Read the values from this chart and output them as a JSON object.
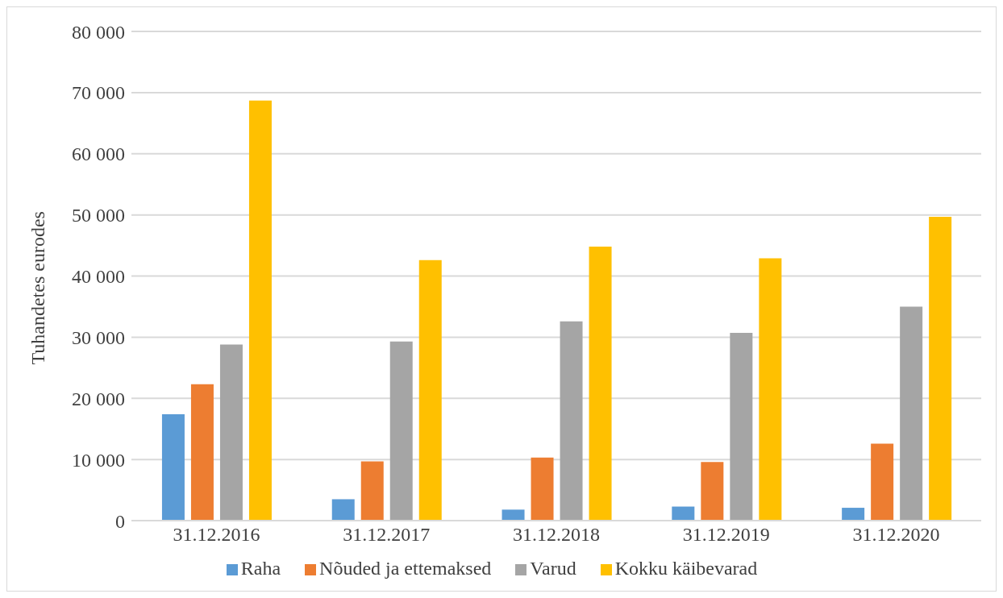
{
  "chart_data": {
    "type": "bar",
    "ylabel": "Tuhandetes eurodes",
    "categories": [
      "31.12.2016",
      "31.12.2017",
      "31.12.2018",
      "31.12.2019",
      "31.12.2020"
    ],
    "series": [
      {
        "name": "Raha",
        "color": "#5b9bd5",
        "values": [
          17400,
          3500,
          1800,
          2300,
          2100
        ]
      },
      {
        "name": "Nõuded ja ettemaksed",
        "color": "#ed7d31",
        "values": [
          22300,
          9700,
          10300,
          9600,
          12600
        ]
      },
      {
        "name": "Varud",
        "color": "#a5a5a5",
        "values": [
          28800,
          29300,
          32600,
          30700,
          35000
        ]
      },
      {
        "name": "Kokku käibevarad",
        "color": "#ffc000",
        "values": [
          68700,
          42600,
          44800,
          42900,
          49700
        ]
      }
    ],
    "ylim": [
      0,
      80000
    ],
    "yticks": [
      {
        "value": 0,
        "label": "0"
      },
      {
        "value": 10000,
        "label": "10 000"
      },
      {
        "value": 20000,
        "label": "20 000"
      },
      {
        "value": 30000,
        "label": "30 000"
      },
      {
        "value": 40000,
        "label": "40 000"
      },
      {
        "value": 50000,
        "label": "50 000"
      },
      {
        "value": 60000,
        "label": "60 000"
      },
      {
        "value": 70000,
        "label": "70 000"
      },
      {
        "value": 80000,
        "label": "80 000"
      }
    ],
    "grid": "y",
    "legend": "bottom"
  }
}
